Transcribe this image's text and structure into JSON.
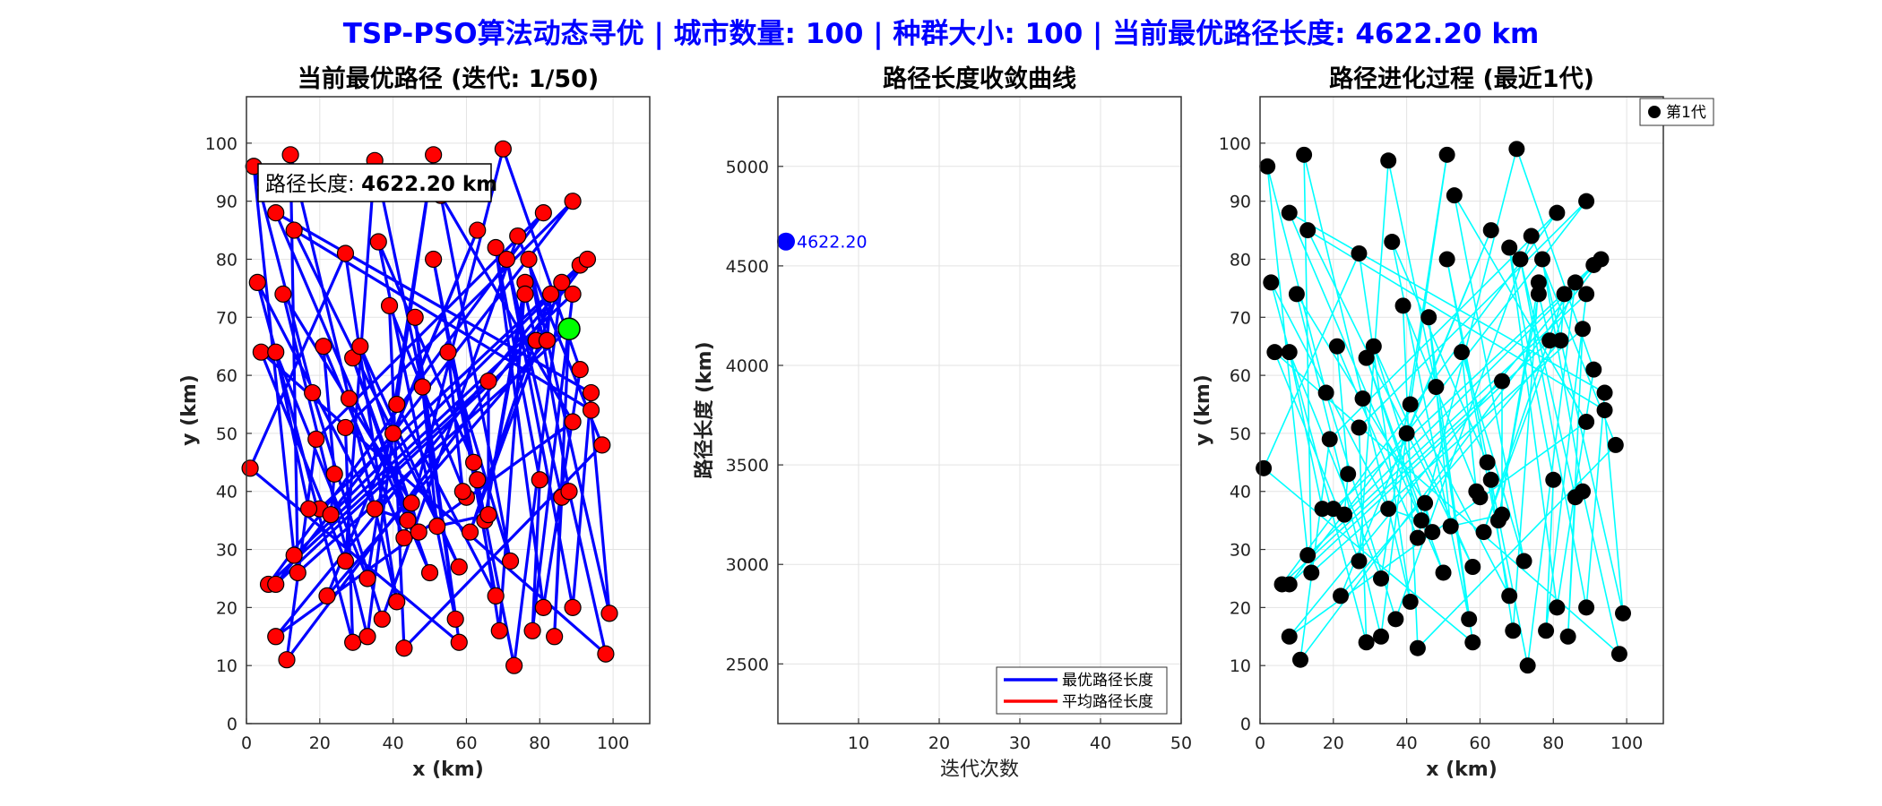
{
  "figure": {
    "suptitle": "TSP-PSO算法动态寻优 | 城市数量: 100 | 种群大小: 100 | 当前最优路径长度: 4622.20 km"
  },
  "chart_data": [
    {
      "type": "scatter",
      "title": "当前最优路径 (迭代: 1/50)",
      "xlabel": "x (km)",
      "ylabel": "y (km)",
      "xlim": [
        0,
        110
      ],
      "ylim": [
        0,
        108
      ],
      "xticks": [
        0,
        20,
        40,
        60,
        80,
        100
      ],
      "yticks": [
        0,
        10,
        20,
        30,
        40,
        50,
        60,
        70,
        80,
        90,
        100
      ],
      "grid": true,
      "annotation": {
        "label": "路径长度: ",
        "value": "4622.20 km"
      },
      "route_color": "#0000ff",
      "city_color": "#ff0000",
      "start_color": "#00ff00",
      "start_city": [
        88,
        68
      ],
      "cities": [
        [
          2,
          96
        ],
        [
          12,
          98
        ],
        [
          35,
          97
        ],
        [
          51,
          98
        ],
        [
          70,
          99
        ],
        [
          8,
          88
        ],
        [
          13,
          85
        ],
        [
          53,
          91
        ],
        [
          81,
          88
        ],
        [
          89,
          90
        ],
        [
          63,
          85
        ],
        [
          74,
          84
        ],
        [
          27,
          81
        ],
        [
          36,
          83
        ],
        [
          51,
          80
        ],
        [
          68,
          82
        ],
        [
          71,
          80
        ],
        [
          77,
          80
        ],
        [
          91,
          79
        ],
        [
          93,
          80
        ],
        [
          3,
          76
        ],
        [
          10,
          74
        ],
        [
          39,
          72
        ],
        [
          46,
          70
        ],
        [
          76,
          76
        ],
        [
          86,
          76
        ],
        [
          89,
          74
        ],
        [
          88,
          68
        ],
        [
          4,
          64
        ],
        [
          8,
          64
        ],
        [
          21,
          65
        ],
        [
          29,
          63
        ],
        [
          31,
          65
        ],
        [
          55,
          64
        ],
        [
          66,
          59
        ],
        [
          79,
          66
        ],
        [
          82,
          66
        ],
        [
          18,
          57
        ],
        [
          28,
          56
        ],
        [
          48,
          58
        ],
        [
          41,
          55
        ],
        [
          91,
          61
        ],
        [
          94,
          57
        ],
        [
          94,
          54
        ],
        [
          89,
          52
        ],
        [
          19,
          49
        ],
        [
          27,
          51
        ],
        [
          40,
          50
        ],
        [
          97,
          48
        ],
        [
          1,
          44
        ],
        [
          62,
          45
        ],
        [
          63,
          42
        ],
        [
          80,
          42
        ],
        [
          86,
          39
        ],
        [
          88,
          40
        ],
        [
          20,
          37
        ],
        [
          23,
          36
        ],
        [
          35,
          37
        ],
        [
          45,
          38
        ],
        [
          60,
          39
        ],
        [
          52,
          34
        ],
        [
          65,
          35
        ],
        [
          61,
          33
        ],
        [
          13,
          29
        ],
        [
          14,
          26
        ],
        [
          27,
          28
        ],
        [
          33,
          25
        ],
        [
          43,
          32
        ],
        [
          50,
          26
        ],
        [
          58,
          27
        ],
        [
          72,
          28
        ],
        [
          6,
          24
        ],
        [
          8,
          24
        ],
        [
          22,
          22
        ],
        [
          37,
          18
        ],
        [
          41,
          21
        ],
        [
          57,
          18
        ],
        [
          68,
          22
        ],
        [
          81,
          20
        ],
        [
          89,
          20
        ],
        [
          99,
          19
        ],
        [
          8,
          15
        ],
        [
          11,
          11
        ],
        [
          29,
          14
        ],
        [
          33,
          15
        ],
        [
          43,
          13
        ],
        [
          58,
          14
        ],
        [
          69,
          16
        ],
        [
          73,
          10
        ],
        [
          78,
          16
        ],
        [
          84,
          15
        ],
        [
          98,
          12
        ],
        [
          17,
          37
        ],
        [
          24,
          43
        ],
        [
          44,
          35
        ],
        [
          47,
          33
        ],
        [
          59,
          40
        ],
        [
          66,
          36
        ],
        [
          76,
          74
        ],
        [
          83,
          74
        ]
      ]
    },
    {
      "type": "line",
      "title": "路径长度收敛曲线",
      "xlabel": "迭代次数",
      "ylabel": "路径长度 (km)",
      "xlim": [
        0,
        50
      ],
      "ylim": [
        2200,
        5350
      ],
      "xticks": [
        10,
        20,
        30,
        40,
        50
      ],
      "yticks": [
        2500,
        3000,
        3500,
        4000,
        4500,
        5000
      ],
      "grid": true,
      "series": [
        {
          "name": "最优路径长度",
          "color": "#0000ff",
          "x": [
            1
          ],
          "y": [
            4622.2
          ]
        },
        {
          "name": "平均路径长度",
          "color": "#ff0000",
          "x": [],
          "y": []
        }
      ],
      "point_label": "4622.20",
      "legend_position": "bottom-right"
    },
    {
      "type": "scatter",
      "title": "路径进化过程 (最近1代)",
      "xlabel": "x (km)",
      "ylabel": "y (km)",
      "xlim": [
        0,
        110
      ],
      "ylim": [
        0,
        108
      ],
      "xticks": [
        0,
        20,
        40,
        60,
        80,
        100
      ],
      "yticks": [
        0,
        10,
        20,
        30,
        40,
        50,
        60,
        70,
        80,
        90,
        100
      ],
      "grid": true,
      "route_color": "#00ffff",
      "city_color": "#000000",
      "legend": [
        "第1代"
      ],
      "legend_position": "outside-top-right"
    }
  ]
}
